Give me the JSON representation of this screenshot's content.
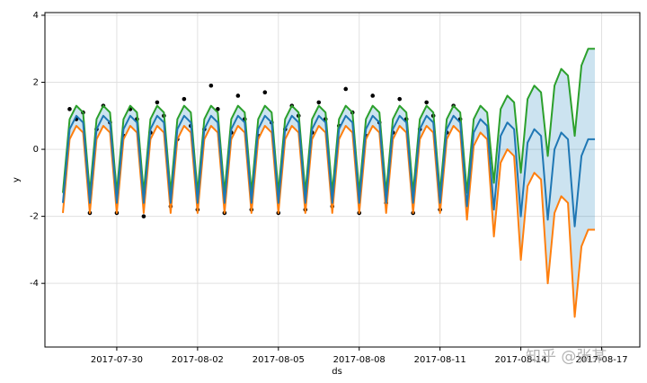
{
  "chart_data": {
    "type": "line",
    "x_label": "ds",
    "y_label": "y",
    "watermark": "知乎 @张某",
    "xlim": [
      "2017-07-27 08:00",
      "2017-08-18 10:00"
    ],
    "ylim": [
      -5.9,
      4.08
    ],
    "xticks": [
      "2017-07-30",
      "2017-08-02",
      "2017-08-05",
      "2017-08-08",
      "2017-08-11",
      "2017-08-14",
      "2017-08-17"
    ],
    "yticks": [
      -4,
      -2,
      0,
      2,
      4
    ],
    "grid": true,
    "band_color": "#0072b2",
    "x": [
      "2017-07-28 00:00",
      "2017-07-28 06:00",
      "2017-07-28 12:00",
      "2017-07-28 18:00",
      "2017-07-29 00:00",
      "2017-07-29 06:00",
      "2017-07-29 12:00",
      "2017-07-29 18:00",
      "2017-07-30 00:00",
      "2017-07-30 06:00",
      "2017-07-30 12:00",
      "2017-07-30 18:00",
      "2017-07-31 00:00",
      "2017-07-31 06:00",
      "2017-07-31 12:00",
      "2017-07-31 18:00",
      "2017-08-01 00:00",
      "2017-08-01 06:00",
      "2017-08-01 12:00",
      "2017-08-01 18:00",
      "2017-08-02 00:00",
      "2017-08-02 06:00",
      "2017-08-02 12:00",
      "2017-08-02 18:00",
      "2017-08-03 00:00",
      "2017-08-03 06:00",
      "2017-08-03 12:00",
      "2017-08-03 18:00",
      "2017-08-04 00:00",
      "2017-08-04 06:00",
      "2017-08-04 12:00",
      "2017-08-04 18:00",
      "2017-08-05 00:00",
      "2017-08-05 06:00",
      "2017-08-05 12:00",
      "2017-08-05 18:00",
      "2017-08-06 00:00",
      "2017-08-06 06:00",
      "2017-08-06 12:00",
      "2017-08-06 18:00",
      "2017-08-07 00:00",
      "2017-08-07 06:00",
      "2017-08-07 12:00",
      "2017-08-07 18:00",
      "2017-08-08 00:00",
      "2017-08-08 06:00",
      "2017-08-08 12:00",
      "2017-08-08 18:00",
      "2017-08-09 00:00",
      "2017-08-09 06:00",
      "2017-08-09 12:00",
      "2017-08-09 18:00",
      "2017-08-10 00:00",
      "2017-08-10 06:00",
      "2017-08-10 12:00",
      "2017-08-10 18:00",
      "2017-08-11 00:00",
      "2017-08-11 06:00",
      "2017-08-11 12:00",
      "2017-08-11 18:00",
      "2017-08-12 00:00",
      "2017-08-12 06:00",
      "2017-08-12 12:00",
      "2017-08-12 18:00",
      "2017-08-13 00:00",
      "2017-08-13 06:00",
      "2017-08-13 12:00",
      "2017-08-13 18:00",
      "2017-08-14 00:00",
      "2017-08-14 06:00",
      "2017-08-14 12:00",
      "2017-08-14 18:00",
      "2017-08-15 00:00",
      "2017-08-15 06:00",
      "2017-08-15 12:00",
      "2017-08-15 18:00",
      "2017-08-16 00:00",
      "2017-08-16 06:00",
      "2017-08-16 12:00",
      "2017-08-16 18:00"
    ],
    "series": [
      {
        "style": "points",
        "color": "#000000",
        "values": [
          null,
          1.2,
          0.9,
          1.1,
          -1.9,
          0.6,
          1.3,
          0.8,
          -1.9,
          0.4,
          1.2,
          0.9,
          -2.0,
          0.5,
          1.4,
          1.0,
          -1.7,
          0.3,
          1.5,
          0.7,
          -1.8,
          0.6,
          1.9,
          1.2,
          -1.9,
          0.5,
          1.6,
          0.9,
          -1.8,
          0.4,
          1.7,
          0.8,
          -1.9,
          0.6,
          1.3,
          1.0,
          -1.8,
          0.5,
          1.4,
          0.9,
          -1.7,
          0.7,
          1.8,
          1.1,
          -1.9,
          0.4,
          1.6,
          0.8,
          -1.6,
          0.5,
          1.5,
          0.9,
          -1.9,
          0.6,
          1.4,
          1.0,
          -1.8,
          0.5,
          1.3,
          0.9,
          null,
          null,
          null,
          null,
          null,
          null,
          null,
          null,
          null,
          null,
          null,
          null,
          null,
          null,
          null,
          null,
          null,
          null,
          null,
          null
        ]
      },
      {
        "style": "line",
        "color": "#ff7f0e",
        "values": [
          -1.9,
          0.3,
          0.7,
          0.5,
          -1.9,
          0.3,
          0.7,
          0.5,
          -1.9,
          0.3,
          0.7,
          0.5,
          -1.9,
          0.3,
          0.7,
          0.5,
          -1.9,
          0.3,
          0.7,
          0.5,
          -1.9,
          0.3,
          0.7,
          0.5,
          -1.9,
          0.3,
          0.7,
          0.5,
          -1.9,
          0.3,
          0.7,
          0.5,
          -1.9,
          0.3,
          0.7,
          0.5,
          -1.9,
          0.3,
          0.7,
          0.5,
          -1.9,
          0.3,
          0.7,
          0.5,
          -1.9,
          0.3,
          0.7,
          0.5,
          -1.9,
          0.3,
          0.7,
          0.5,
          -1.9,
          0.3,
          0.7,
          0.5,
          -1.9,
          0.3,
          0.7,
          0.5,
          -2.1,
          0.1,
          0.5,
          0.3,
          -2.6,
          -0.4,
          0.0,
          -0.2,
          -3.3,
          -1.1,
          -0.7,
          -0.9,
          -4.0,
          -1.9,
          -1.4,
          -1.6,
          -5.0,
          -2.9,
          -2.4,
          -2.4
        ]
      },
      {
        "style": "line",
        "color": "#2ca02c",
        "values": [
          -1.3,
          0.9,
          1.3,
          1.1,
          -1.3,
          0.9,
          1.3,
          1.1,
          -1.3,
          0.9,
          1.3,
          1.1,
          -1.3,
          0.9,
          1.3,
          1.1,
          -1.3,
          0.9,
          1.3,
          1.1,
          -1.3,
          0.9,
          1.3,
          1.1,
          -1.3,
          0.9,
          1.3,
          1.1,
          -1.3,
          0.9,
          1.3,
          1.1,
          -1.3,
          0.9,
          1.3,
          1.1,
          -1.3,
          0.9,
          1.3,
          1.1,
          -1.3,
          0.9,
          1.3,
          1.1,
          -1.3,
          0.9,
          1.3,
          1.1,
          -1.3,
          0.9,
          1.3,
          1.1,
          -1.3,
          0.9,
          1.3,
          1.1,
          -1.3,
          0.9,
          1.3,
          1.1,
          -1.3,
          0.9,
          1.3,
          1.1,
          -1.0,
          1.2,
          1.6,
          1.4,
          -0.7,
          1.5,
          1.9,
          1.7,
          -0.2,
          1.9,
          2.4,
          2.2,
          0.4,
          2.5,
          3.0,
          3.0
        ]
      },
      {
        "style": "line",
        "color": "#1f77b4",
        "values": [
          -1.6,
          0.6,
          1.0,
          0.8,
          -1.6,
          0.6,
          1.0,
          0.8,
          -1.6,
          0.6,
          1.0,
          0.8,
          -1.6,
          0.6,
          1.0,
          0.8,
          -1.6,
          0.6,
          1.0,
          0.8,
          -1.6,
          0.6,
          1.0,
          0.8,
          -1.6,
          0.6,
          1.0,
          0.8,
          -1.6,
          0.6,
          1.0,
          0.8,
          -1.6,
          0.6,
          1.0,
          0.8,
          -1.6,
          0.6,
          1.0,
          0.8,
          -1.6,
          0.6,
          1.0,
          0.8,
          -1.6,
          0.6,
          1.0,
          0.8,
          -1.6,
          0.6,
          1.0,
          0.8,
          -1.6,
          0.6,
          1.0,
          0.8,
          -1.6,
          0.6,
          1.0,
          0.8,
          -1.7,
          0.5,
          0.9,
          0.7,
          -1.8,
          0.4,
          0.8,
          0.6,
          -2.0,
          0.2,
          0.6,
          0.4,
          -2.1,
          0.0,
          0.5,
          0.3,
          -2.3,
          -0.2,
          0.3,
          0.3
        ]
      }
    ]
  }
}
